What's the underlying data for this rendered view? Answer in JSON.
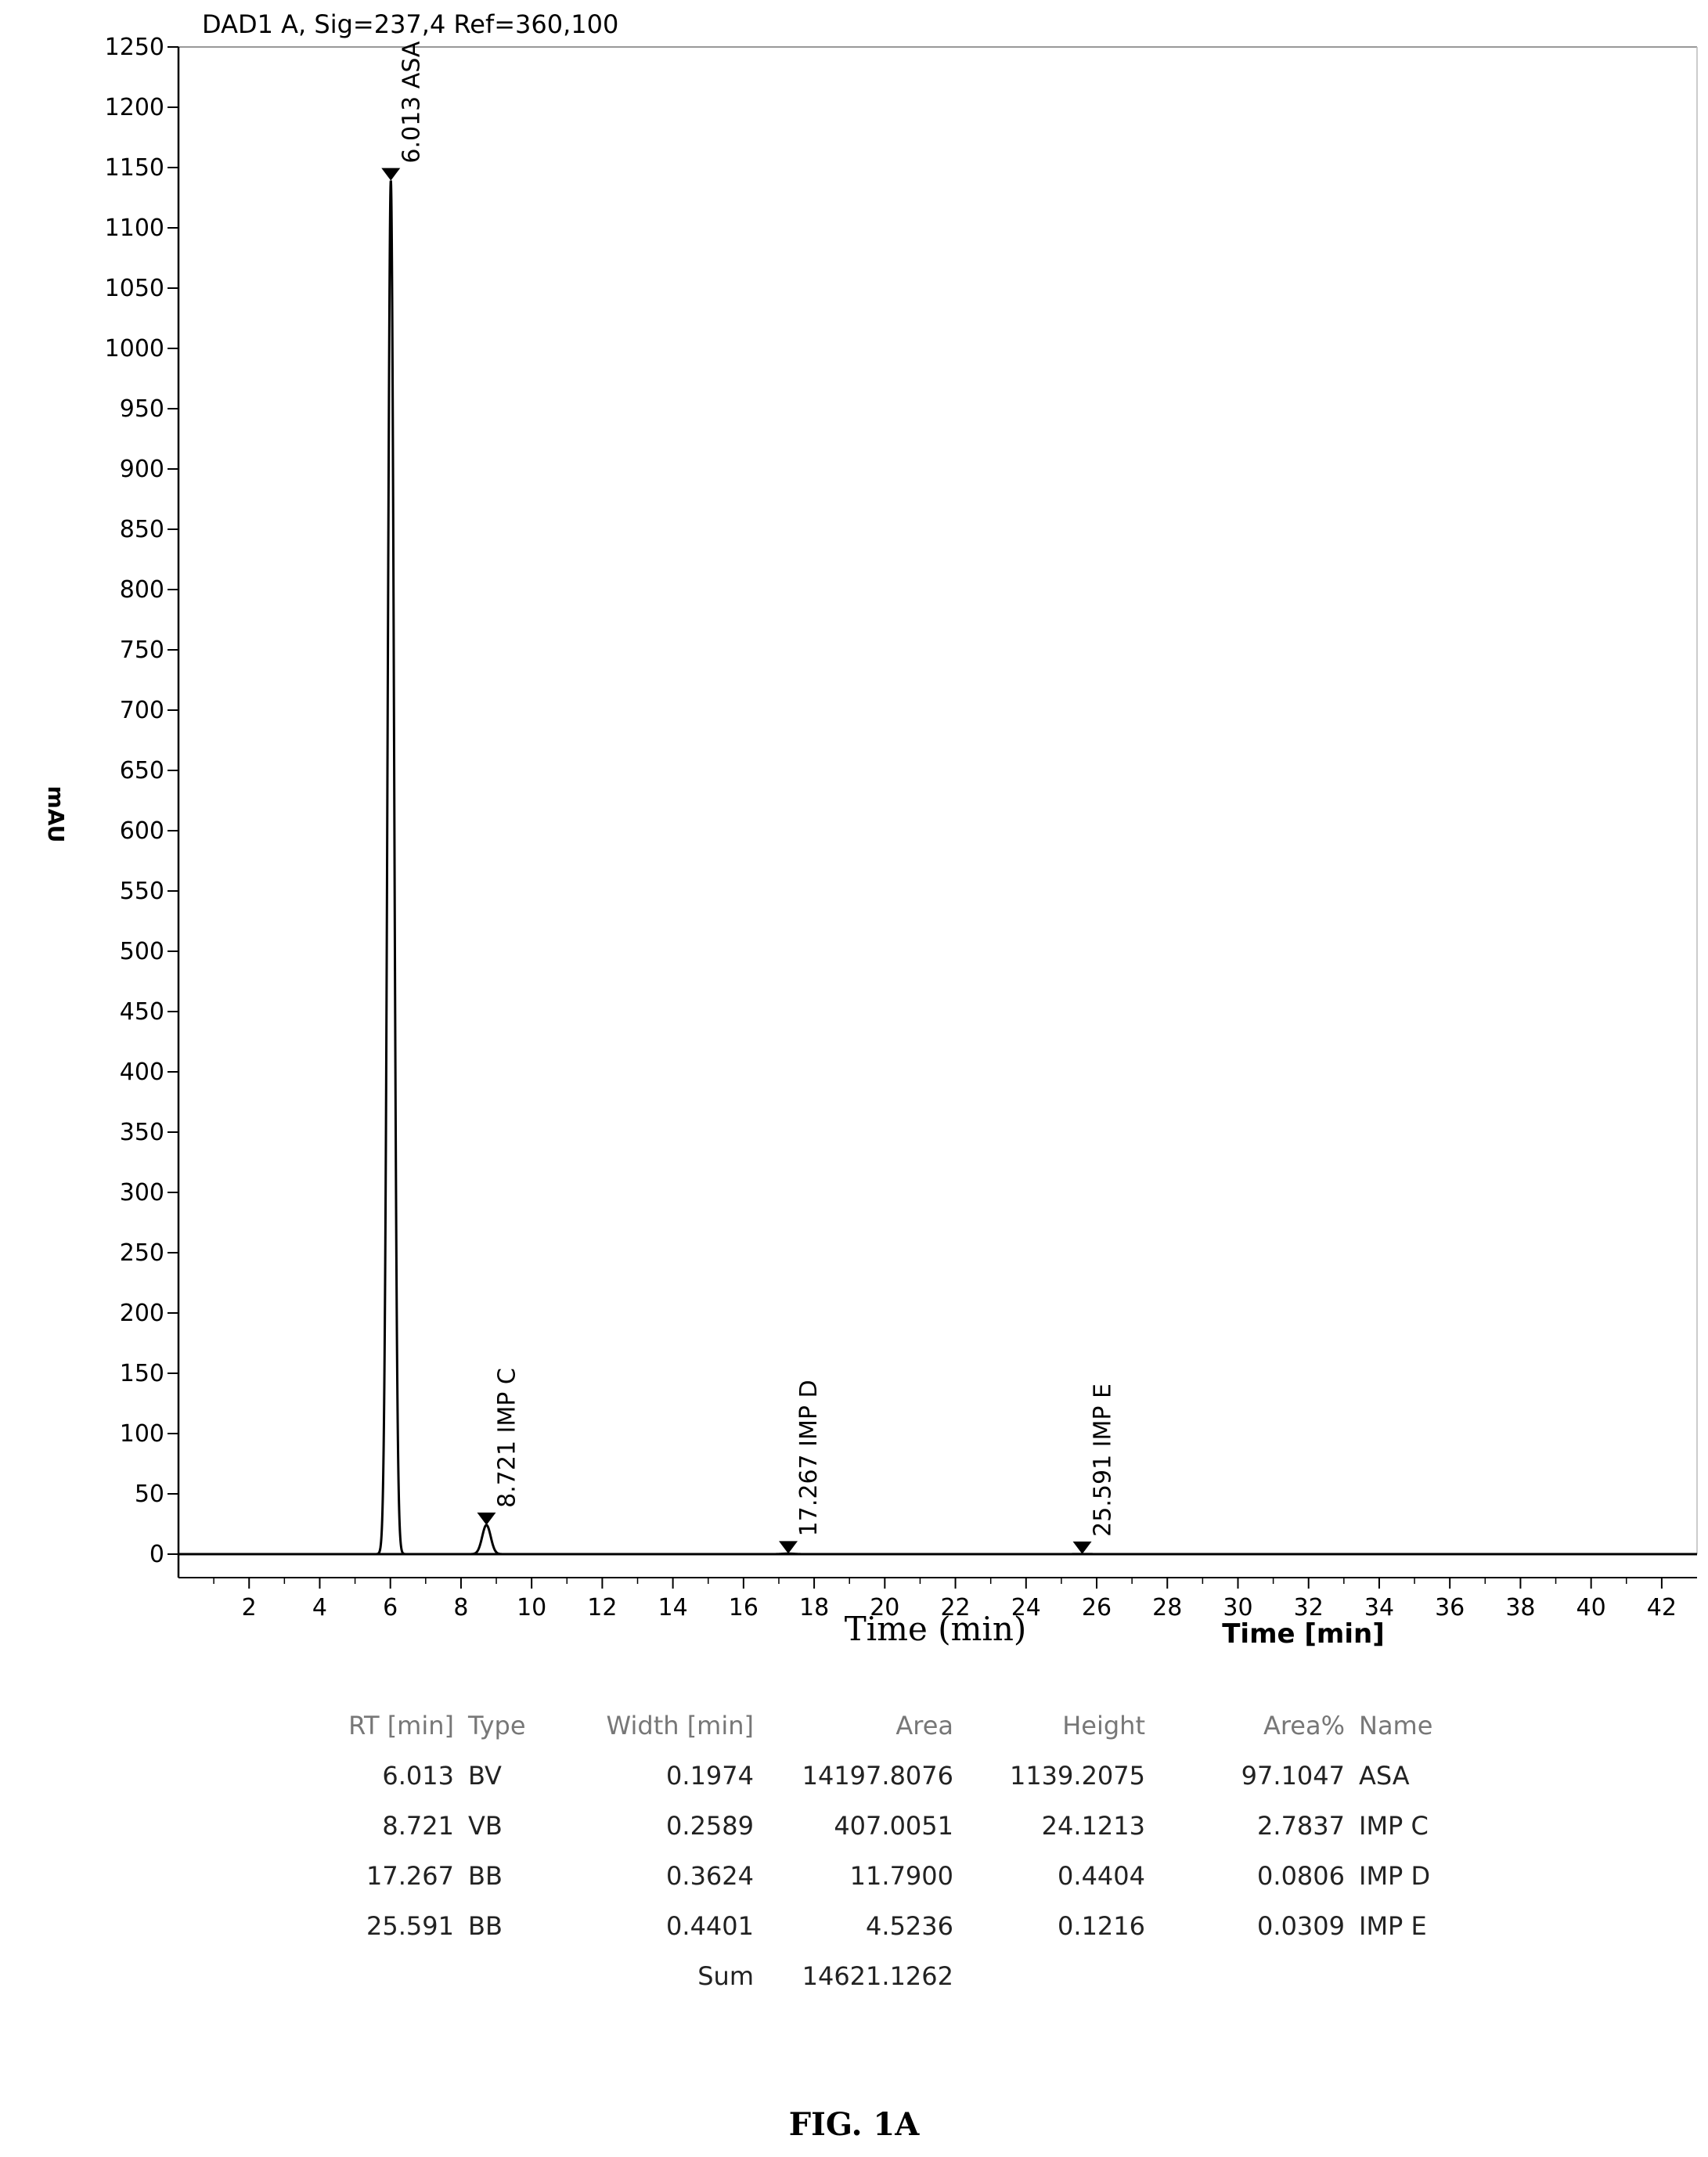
{
  "chart_data": {
    "type": "line",
    "title": "DAD1 A, Sig=237,4 Ref=360,100",
    "xlabel": "Time (min)",
    "xlabel_secondary": "Time [min]",
    "ylabel": "mAU",
    "xlim": [
      0,
      43
    ],
    "ylim": [
      0,
      1250
    ],
    "xticks": [
      2,
      4,
      6,
      8,
      10,
      12,
      14,
      16,
      18,
      20,
      22,
      24,
      26,
      28,
      30,
      32,
      34,
      36,
      38,
      40,
      42
    ],
    "yticks": [
      0,
      50,
      100,
      150,
      200,
      250,
      300,
      350,
      400,
      450,
      500,
      550,
      600,
      650,
      700,
      750,
      800,
      850,
      900,
      950,
      1000,
      1050,
      1100,
      1150,
      1200,
      1250
    ],
    "peaks": [
      {
        "rt": 6.013,
        "height": 1139.2075,
        "label": "6.013 ASA"
      },
      {
        "rt": 8.721,
        "height": 24.1213,
        "label": "8.721 IMP C"
      },
      {
        "rt": 17.267,
        "height": 0.4404,
        "label": "17.267 IMP D"
      },
      {
        "rt": 25.591,
        "height": 0.1216,
        "label": "25.591 IMP E"
      }
    ]
  },
  "table": {
    "headers": [
      "RT [min]",
      "Type",
      "Width [min]",
      "Area",
      "Height",
      "Area%",
      "Name"
    ],
    "rows": [
      [
        "6.013",
        "BV",
        "0.1974",
        "14197.8076",
        "1139.2075",
        "97.1047",
        "ASA"
      ],
      [
        "8.721",
        "VB",
        "0.2589",
        "407.0051",
        "24.1213",
        "2.7837",
        "IMP C"
      ],
      [
        "17.267",
        "BB",
        "0.3624",
        "11.7900",
        "0.4404",
        "0.0806",
        "IMP D"
      ],
      [
        "25.591",
        "BB",
        "0.4401",
        "4.5236",
        "0.1216",
        "0.0309",
        "IMP E"
      ]
    ],
    "sum_label": "Sum",
    "sum_value": "14621.1262"
  },
  "caption": "FIG. 1A"
}
